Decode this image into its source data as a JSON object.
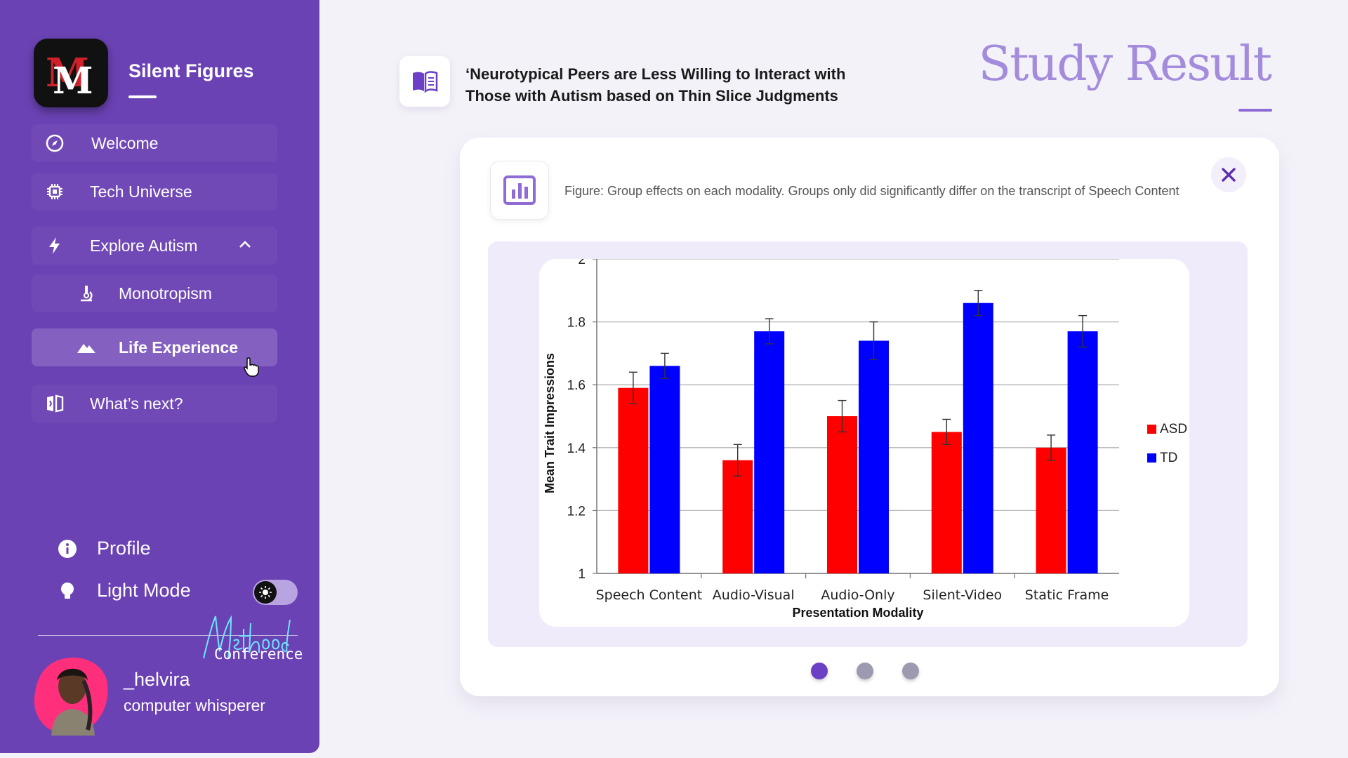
{
  "sidebar": {
    "brand": "Silent Figures",
    "items": [
      {
        "label": "Welcome",
        "icon": "compass-icon"
      },
      {
        "label": "Tech Universe",
        "icon": "chip-icon"
      },
      {
        "label": "Explore Autism",
        "icon": "lightning-icon"
      },
      {
        "label": "Monotropism",
        "icon": "microscope-icon"
      },
      {
        "label": "Life Experience",
        "icon": "mountain-icon"
      },
      {
        "label": "What’s next?",
        "icon": "book-split-icon"
      }
    ],
    "profile_label": "Profile",
    "light_mode_label": "Light Mode",
    "signature_text": "Conference",
    "user": {
      "name": "_helvira",
      "role": "computer whisperer"
    }
  },
  "header": {
    "paper_title": "‘Neurotypical Peers are Less Willing to Interact with Those with Autism based on Thin Slice Judgments",
    "study_title": "Study Result"
  },
  "figure": {
    "caption": "Figure: Group effects on each modality. Groups only did significantly differ on the transcript of Speech Content"
  },
  "colors": {
    "sidebar": "#6b42b4",
    "accent": "#8f6bd5",
    "asd": "#ff0000",
    "td": "#0000ff",
    "dot_active": "#6b3fc6",
    "dot_inactive": "#9b9ab0"
  },
  "chart_data": {
    "type": "bar",
    "categories": [
      "Speech Content",
      "Audio-Visual",
      "Audio-Only",
      "Silent-Video",
      "Static Frame"
    ],
    "series": [
      {
        "name": "ASD",
        "values": [
          1.59,
          1.36,
          1.5,
          1.45,
          1.4
        ],
        "errors": [
          0.05,
          0.05,
          0.05,
          0.04,
          0.04
        ],
        "color": "#ff0000"
      },
      {
        "name": "TD",
        "values": [
          1.66,
          1.77,
          1.74,
          1.86,
          1.77
        ],
        "errors": [
          0.04,
          0.04,
          0.06,
          0.04,
          0.05
        ],
        "color": "#0000ff"
      }
    ],
    "xlabel": "Presentation Modality",
    "ylabel": "Mean Trait Impressions",
    "ylim": [
      1,
      2
    ],
    "yticks": [
      "1",
      "1.2",
      "1.4",
      "1.6",
      "1.8",
      "2"
    ],
    "grid": true,
    "legend": "right"
  }
}
